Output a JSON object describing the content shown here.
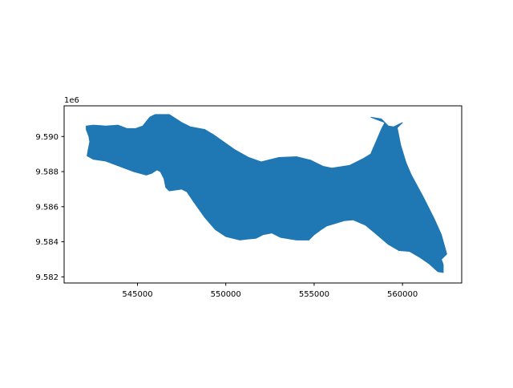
{
  "chart_data": {
    "type": "map",
    "geometry": "polygon",
    "fill_color": "#1f77b4",
    "grid": false,
    "legend": "none",
    "x_ticks": [
      545000,
      550000,
      555000,
      560000
    ],
    "x_tick_labels": [
      "545000",
      "550000",
      "555000",
      "560000"
    ],
    "y_ticks": [
      9.582,
      9.584,
      9.586,
      9.588,
      9.59
    ],
    "y_tick_labels": [
      "9.582",
      "9.584",
      "9.586",
      "9.588",
      "9.590"
    ],
    "y_offset_label": "1e6",
    "xlim": [
      540850,
      563350
    ],
    "ylim": [
      9.58165,
      9.59175
    ],
    "outline": [
      [
        542100,
        9.5906
      ],
      [
        542500,
        9.59065
      ],
      [
        543200,
        9.5906
      ],
      [
        543900,
        9.59065
      ],
      [
        544400,
        9.59045
      ],
      [
        544900,
        9.59045
      ],
      [
        545300,
        9.5906
      ],
      [
        545700,
        9.5911
      ],
      [
        546000,
        9.59125
      ],
      [
        546800,
        9.59125
      ],
      [
        547500,
        9.5908
      ],
      [
        548000,
        9.59055
      ],
      [
        548800,
        9.5904
      ],
      [
        549300,
        9.5901
      ],
      [
        549800,
        9.58975
      ],
      [
        550500,
        9.58925
      ],
      [
        551300,
        9.5888
      ],
      [
        552000,
        9.58855
      ],
      [
        553000,
        9.5888
      ],
      [
        554000,
        9.58885
      ],
      [
        554800,
        9.58865
      ],
      [
        555500,
        9.5883
      ],
      [
        556000,
        9.5882
      ],
      [
        557000,
        9.58835
      ],
      [
        557800,
        9.58875
      ],
      [
        558200,
        9.589
      ],
      [
        558500,
        9.5897
      ],
      [
        558800,
        9.5904
      ],
      [
        559000,
        9.5908
      ],
      [
        558600,
        9.59095
      ],
      [
        558200,
        9.5911
      ],
      [
        558800,
        9.591
      ],
      [
        559200,
        9.5906
      ],
      [
        559500,
        9.59055
      ],
      [
        560000,
        9.5908
      ],
      [
        559700,
        9.5905
      ],
      [
        559900,
        9.5895
      ],
      [
        560200,
        9.5885
      ],
      [
        560500,
        9.5878
      ],
      [
        561200,
        9.5865
      ],
      [
        561800,
        9.5853
      ],
      [
        562200,
        9.5844
      ],
      [
        562500,
        9.5833
      ],
      [
        562200,
        9.583
      ],
      [
        562300,
        9.5827
      ],
      [
        562300,
        9.58225
      ],
      [
        562000,
        9.5823
      ],
      [
        561500,
        9.58275
      ],
      [
        561000,
        9.5831
      ],
      [
        560400,
        9.58345
      ],
      [
        559800,
        9.5835
      ],
      [
        559200,
        9.58385
      ],
      [
        558500,
        9.58445
      ],
      [
        557900,
        9.58495
      ],
      [
        557200,
        9.58525
      ],
      [
        556700,
        9.5852
      ],
      [
        556200,
        9.58505
      ],
      [
        555700,
        9.5849
      ],
      [
        555400,
        9.5847
      ],
      [
        555000,
        9.5844
      ],
      [
        554700,
        9.5841
      ],
      [
        554000,
        9.5841
      ],
      [
        553100,
        9.58425
      ],
      [
        552600,
        9.5845
      ],
      [
        552100,
        9.5844
      ],
      [
        551700,
        9.5842
      ],
      [
        551200,
        9.58415
      ],
      [
        550800,
        9.5841
      ],
      [
        550000,
        9.5843
      ],
      [
        549400,
        9.5847
      ],
      [
        548800,
        9.5854
      ],
      [
        548200,
        9.58625
      ],
      [
        547800,
        9.58685
      ],
      [
        547500,
        9.587
      ],
      [
        546800,
        9.5869
      ],
      [
        546600,
        9.5871
      ],
      [
        546500,
        9.5876
      ],
      [
        546300,
        9.588
      ],
      [
        546100,
        9.5881
      ],
      [
        545800,
        9.5879
      ],
      [
        545500,
        9.5878
      ],
      [
        544800,
        9.588
      ],
      [
        544000,
        9.5883
      ],
      [
        543200,
        9.5886
      ],
      [
        542500,
        9.5887
      ],
      [
        542150,
        9.5889
      ],
      [
        542200,
        9.5892
      ],
      [
        542300,
        9.5897
      ],
      [
        542250,
        9.59
      ],
      [
        542100,
        9.5904
      ]
    ]
  }
}
